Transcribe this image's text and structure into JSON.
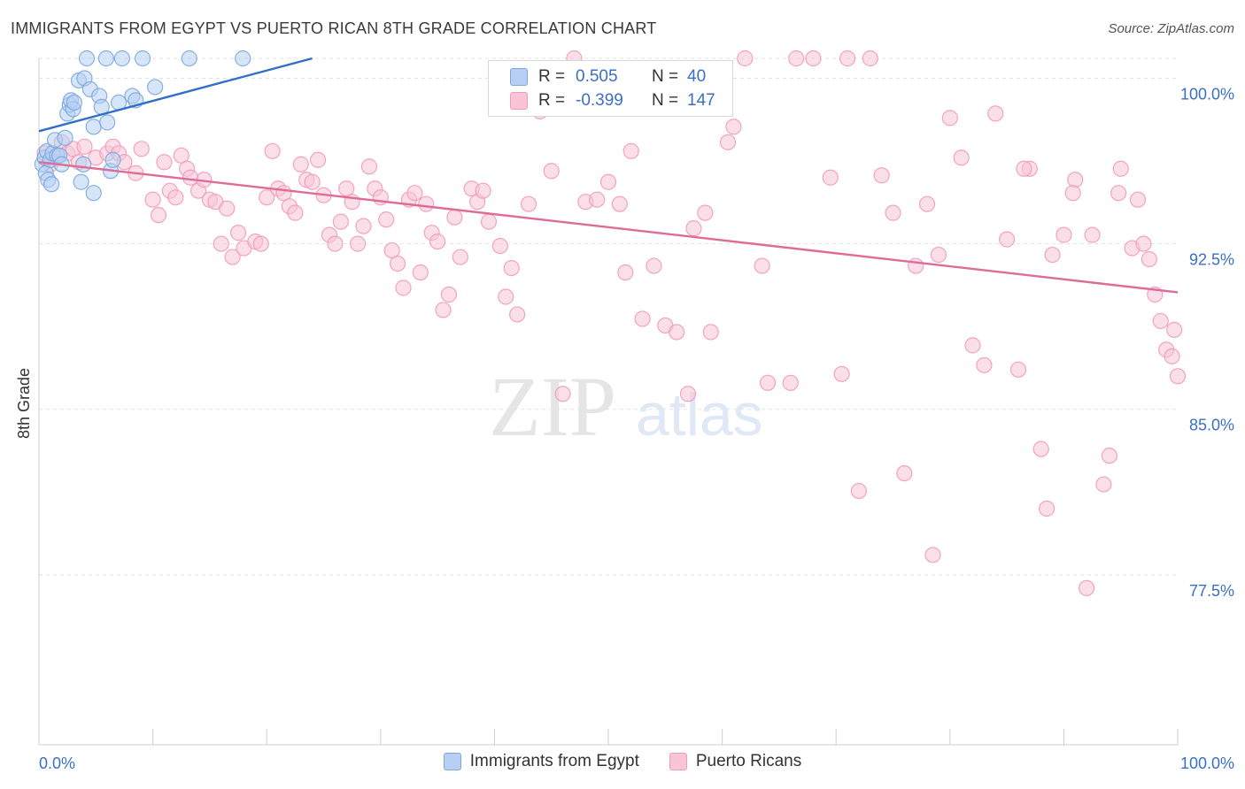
{
  "header": {
    "title": "IMMIGRANTS FROM EGYPT VS PUERTO RICAN 8TH GRADE CORRELATION CHART",
    "source": "Source: ZipAtlas.com"
  },
  "watermark": {
    "zip": "ZIP",
    "atlas": "atlas"
  },
  "stats": [
    {
      "r_label": "R =",
      "r_value": "0.505",
      "n_label": "N =",
      "n_value": "40",
      "color": "#7aa7e0",
      "fill": "#b7cff2"
    },
    {
      "r_label": "R =",
      "r_value": "-0.399",
      "n_label": "N =",
      "n_value": "147",
      "color": "#f29ab8",
      "fill": "#f8c5d6"
    }
  ],
  "legend": [
    {
      "label": "Immigrants from Egypt",
      "fill": "#b7cff2",
      "stroke": "#7aa7e0"
    },
    {
      "label": "Puerto Ricans",
      "fill": "#f8c5d6",
      "stroke": "#f29ab8"
    }
  ],
  "chart_data": {
    "type": "scatter",
    "title": "IMMIGRANTS FROM EGYPT VS PUERTO RICAN 8TH GRADE CORRELATION CHART",
    "xlabel": "",
    "ylabel": "8th Grade",
    "xlim": [
      0,
      100
    ],
    "ylim": [
      69.8,
      100.9
    ],
    "x_tick_labels": [
      "0.0%",
      "100.0%"
    ],
    "y_ticks": [
      100.0,
      92.5,
      85.0,
      77.5
    ],
    "y_tick_labels": [
      "100.0%",
      "92.5%",
      "85.0%",
      "77.5%"
    ],
    "series": [
      {
        "name": "Immigrants from Egypt",
        "color": "#7aa7e0",
        "fill": "#b7cff2",
        "line_color": "#2f6fca",
        "trend": {
          "x0": 0.0,
          "y0": 97.6,
          "x1": 24.0,
          "y1": 100.9
        },
        "points": [
          [
            0.3,
            96.1
          ],
          [
            0.5,
            96.4
          ],
          [
            0.6,
            95.7
          ],
          [
            0.7,
            96.7
          ],
          [
            0.8,
            95.4
          ],
          [
            1.0,
            96.3
          ],
          [
            1.1,
            95.2
          ],
          [
            1.2,
            96.6
          ],
          [
            1.4,
            97.2
          ],
          [
            1.6,
            96.5
          ],
          [
            1.8,
            96.5
          ],
          [
            2.0,
            96.1
          ],
          [
            2.3,
            97.3
          ],
          [
            2.5,
            98.4
          ],
          [
            2.7,
            98.8
          ],
          [
            2.8,
            99.0
          ],
          [
            3.0,
            98.6
          ],
          [
            3.1,
            98.9
          ],
          [
            3.5,
            99.9
          ],
          [
            3.9,
            96.1
          ],
          [
            4.0,
            100.0
          ],
          [
            4.2,
            100.9
          ],
          [
            4.5,
            99.5
          ],
          [
            4.8,
            97.8
          ],
          [
            5.3,
            99.2
          ],
          [
            5.5,
            98.7
          ],
          [
            6.0,
            98.0
          ],
          [
            6.3,
            95.8
          ],
          [
            6.5,
            96.3
          ],
          [
            5.9,
            100.9
          ],
          [
            7.0,
            98.9
          ],
          [
            7.3,
            100.9
          ],
          [
            8.2,
            99.2
          ],
          [
            8.5,
            99.0
          ],
          [
            9.1,
            100.9
          ],
          [
            10.2,
            99.6
          ],
          [
            13.2,
            100.9
          ],
          [
            17.9,
            100.9
          ],
          [
            4.8,
            94.8
          ],
          [
            3.7,
            95.3
          ]
        ]
      },
      {
        "name": "Puerto Ricans",
        "color": "#f29ab8",
        "fill": "#f8c5d6",
        "line_color": "#e06b96",
        "trend": {
          "x0": 0.0,
          "y0": 96.2,
          "x1": 100.0,
          "y1": 90.3
        },
        "points": [
          [
            0.5,
            96.6
          ],
          [
            1.0,
            96.1
          ],
          [
            1.5,
            96.4
          ],
          [
            2.0,
            97.1
          ],
          [
            2.5,
            96.6
          ],
          [
            3.0,
            96.8
          ],
          [
            3.5,
            96.2
          ],
          [
            4.0,
            96.9
          ],
          [
            5.0,
            96.4
          ],
          [
            6.0,
            96.6
          ],
          [
            6.5,
            96.9
          ],
          [
            7.0,
            96.6
          ],
          [
            7.5,
            96.2
          ],
          [
            8.5,
            95.7
          ],
          [
            9.0,
            96.8
          ],
          [
            10.0,
            94.5
          ],
          [
            10.5,
            93.8
          ],
          [
            11.5,
            94.9
          ],
          [
            12.0,
            94.6
          ],
          [
            11.0,
            96.2
          ],
          [
            12.5,
            96.5
          ],
          [
            13.0,
            95.9
          ],
          [
            13.3,
            95.5
          ],
          [
            14.0,
            94.9
          ],
          [
            14.5,
            95.4
          ],
          [
            15.0,
            94.5
          ],
          [
            15.5,
            94.4
          ],
          [
            16.0,
            92.5
          ],
          [
            16.5,
            94.1
          ],
          [
            17.0,
            91.9
          ],
          [
            17.5,
            93.0
          ],
          [
            18.0,
            92.3
          ],
          [
            19.0,
            92.6
          ],
          [
            19.5,
            92.5
          ],
          [
            20.0,
            94.6
          ],
          [
            20.5,
            96.7
          ],
          [
            21.0,
            95.0
          ],
          [
            21.5,
            94.8
          ],
          [
            22.0,
            94.2
          ],
          [
            22.5,
            93.9
          ],
          [
            23.0,
            96.1
          ],
          [
            23.5,
            95.4
          ],
          [
            24.0,
            95.3
          ],
          [
            24.5,
            96.3
          ],
          [
            25.0,
            94.7
          ],
          [
            25.5,
            92.9
          ],
          [
            26.0,
            92.5
          ],
          [
            26.5,
            93.5
          ],
          [
            27.0,
            95.0
          ],
          [
            27.5,
            94.4
          ],
          [
            28.0,
            92.5
          ],
          [
            28.5,
            93.3
          ],
          [
            29.0,
            96.0
          ],
          [
            29.5,
            95.0
          ],
          [
            30.0,
            94.6
          ],
          [
            30.5,
            93.6
          ],
          [
            31.0,
            92.2
          ],
          [
            31.5,
            91.6
          ],
          [
            32.0,
            90.5
          ],
          [
            32.5,
            94.5
          ],
          [
            33.0,
            94.8
          ],
          [
            33.5,
            91.2
          ],
          [
            34.0,
            94.3
          ],
          [
            34.5,
            93.0
          ],
          [
            35.0,
            92.6
          ],
          [
            35.5,
            89.5
          ],
          [
            36.0,
            90.2
          ],
          [
            36.5,
            93.7
          ],
          [
            37.0,
            91.9
          ],
          [
            38.0,
            95.0
          ],
          [
            38.5,
            94.4
          ],
          [
            39.0,
            94.9
          ],
          [
            39.5,
            93.5
          ],
          [
            40.5,
            92.4
          ],
          [
            41.0,
            90.1
          ],
          [
            41.5,
            91.4
          ],
          [
            42.0,
            89.3
          ],
          [
            43.0,
            94.3
          ],
          [
            44.0,
            98.5
          ],
          [
            45.0,
            95.8
          ],
          [
            46.0,
            85.7
          ],
          [
            47.0,
            100.9
          ],
          [
            48.0,
            94.4
          ],
          [
            49.0,
            94.5
          ],
          [
            50.0,
            95.3
          ],
          [
            51.0,
            94.3
          ],
          [
            51.5,
            91.2
          ],
          [
            52.0,
            96.7
          ],
          [
            53.0,
            89.1
          ],
          [
            54.0,
            91.5
          ],
          [
            55.0,
            88.8
          ],
          [
            56.0,
            88.5
          ],
          [
            57.0,
            85.7
          ],
          [
            57.5,
            93.2
          ],
          [
            58.5,
            93.9
          ],
          [
            59.0,
            88.5
          ],
          [
            60.5,
            97.1
          ],
          [
            61.0,
            97.8
          ],
          [
            62.0,
            100.9
          ],
          [
            63.5,
            91.5
          ],
          [
            64.0,
            86.2
          ],
          [
            66.0,
            86.2
          ],
          [
            66.5,
            100.9
          ],
          [
            68.0,
            100.9
          ],
          [
            69.5,
            95.5
          ],
          [
            70.5,
            86.6
          ],
          [
            71.0,
            100.9
          ],
          [
            72.0,
            81.3
          ],
          [
            73.0,
            100.9
          ],
          [
            74.0,
            95.6
          ],
          [
            75.0,
            93.9
          ],
          [
            76.0,
            82.1
          ],
          [
            77.0,
            91.5
          ],
          [
            78.0,
            94.3
          ],
          [
            79.0,
            92.0
          ],
          [
            80.0,
            98.2
          ],
          [
            81.0,
            96.4
          ],
          [
            82.0,
            87.9
          ],
          [
            83.0,
            87.0
          ],
          [
            84.0,
            98.4
          ],
          [
            85.0,
            92.7
          ],
          [
            86.0,
            86.8
          ],
          [
            87.0,
            95.9
          ],
          [
            88.0,
            83.2
          ],
          [
            88.5,
            80.5
          ],
          [
            89.0,
            92.0
          ],
          [
            90.0,
            92.9
          ],
          [
            91.0,
            95.4
          ],
          [
            92.0,
            76.9
          ],
          [
            92.5,
            92.9
          ],
          [
            93.5,
            81.6
          ],
          [
            94.0,
            82.9
          ],
          [
            95.0,
            95.9
          ],
          [
            96.0,
            92.3
          ],
          [
            97.0,
            92.5
          ],
          [
            97.5,
            91.8
          ],
          [
            98.0,
            90.2
          ],
          [
            98.5,
            89.0
          ],
          [
            99.0,
            87.7
          ],
          [
            99.5,
            87.4
          ],
          [
            100.0,
            86.5
          ],
          [
            99.7,
            88.6
          ],
          [
            96.5,
            94.5
          ],
          [
            94.8,
            94.8
          ],
          [
            78.5,
            78.4
          ],
          [
            90.8,
            94.8
          ],
          [
            86.5,
            95.9
          ]
        ]
      }
    ]
  }
}
